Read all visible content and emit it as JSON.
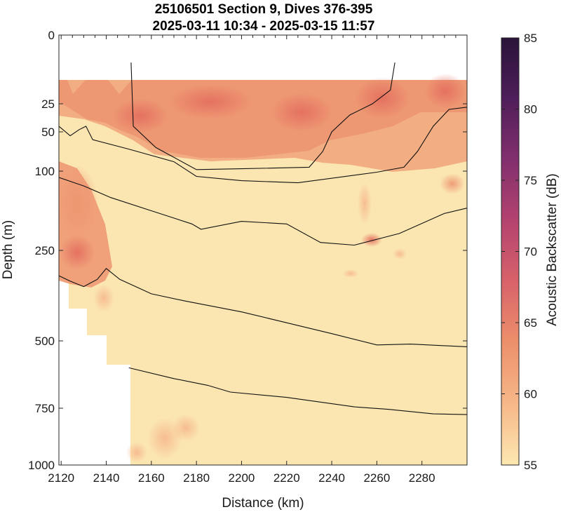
{
  "chart_data": {
    "type": "heatmap",
    "title": "25106501 Section 9, Dives 376-395",
    "subtitle": "2025-03-11 10:34 - 2025-03-15 11:57",
    "xlabel": "Distance (km)",
    "ylabel": "Depth (m)",
    "xlim": [
      2119,
      2300
    ],
    "ylim": [
      0,
      1000
    ],
    "y_scale": "nonlinear (stretched near surface)",
    "x_ticks": [
      2120,
      2140,
      2160,
      2180,
      2200,
      2220,
      2240,
      2260,
      2280
    ],
    "y_ticks": [
      0,
      25,
      50,
      100,
      250,
      500,
      750,
      1000
    ],
    "colorbar": {
      "label": "Acoustic Backscatter (dB)",
      "range": [
        55,
        85
      ],
      "ticks": [
        55,
        60,
        65,
        70,
        75,
        80,
        85
      ],
      "colormap": [
        "#fde8b0",
        "#f7b88a",
        "#ec8f6a",
        "#d8626a",
        "#b4436f",
        "#84306e",
        "#4e1e5a",
        "#2a1439"
      ]
    },
    "contour_lines": [
      {
        "points": [
          [
            2151,
            10
          ],
          [
            2152,
            45
          ],
          [
            2162,
            70
          ],
          [
            2180,
            98
          ],
          [
            2200,
            97
          ],
          [
            2230,
            95
          ],
          [
            2236,
            75
          ],
          [
            2240,
            50
          ],
          [
            2248,
            35
          ],
          [
            2258,
            25
          ],
          [
            2266,
            20
          ],
          [
            2268,
            10
          ]
        ]
      },
      {
        "points": [
          [
            2119,
            45
          ],
          [
            2124,
            55
          ],
          [
            2128,
            48
          ],
          [
            2131,
            45
          ],
          [
            2134,
            60
          ],
          [
            2150,
            72
          ],
          [
            2170,
            88
          ],
          [
            2180,
            110
          ],
          [
            2200,
            118
          ],
          [
            2225,
            122
          ],
          [
            2260,
            102
          ],
          [
            2272,
            95
          ],
          [
            2278,
            75
          ],
          [
            2285,
            45
          ],
          [
            2292,
            30
          ],
          [
            2300,
            28
          ]
        ]
      },
      {
        "points": [
          [
            2119,
            112
          ],
          [
            2130,
            128
          ],
          [
            2142,
            150
          ],
          [
            2160,
            175
          ],
          [
            2178,
            200
          ],
          [
            2182,
            210
          ],
          [
            2200,
            195
          ],
          [
            2220,
            200
          ],
          [
            2235,
            235
          ],
          [
            2250,
            240
          ],
          [
            2270,
            218
          ],
          [
            2290,
            180
          ],
          [
            2300,
            170
          ]
        ]
      },
      {
        "points": [
          [
            2119,
            320
          ],
          [
            2124,
            335
          ],
          [
            2130,
            350
          ],
          [
            2136,
            330
          ],
          [
            2140,
            300
          ],
          [
            2146,
            330
          ],
          [
            2160,
            370
          ],
          [
            2175,
            390
          ],
          [
            2200,
            420
          ],
          [
            2220,
            450
          ],
          [
            2240,
            480
          ],
          [
            2260,
            515
          ],
          [
            2275,
            512
          ],
          [
            2290,
            518
          ],
          [
            2300,
            522
          ]
        ]
      },
      {
        "points": [
          [
            2150,
            600
          ],
          [
            2170,
            640
          ],
          [
            2185,
            665
          ],
          [
            2195,
            690
          ],
          [
            2220,
            710
          ],
          [
            2250,
            745
          ],
          [
            2265,
            755
          ],
          [
            2285,
            775
          ],
          [
            2300,
            778
          ]
        ]
      }
    ]
  }
}
